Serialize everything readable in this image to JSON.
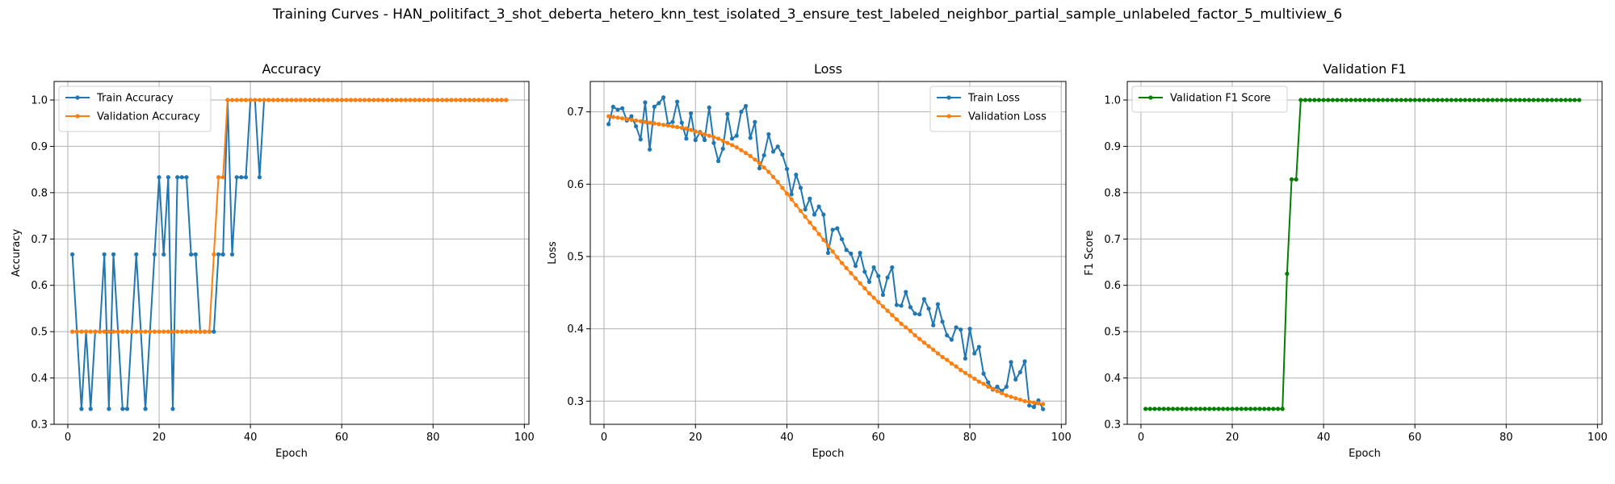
{
  "figure": {
    "title": "Training Curves - HAN_politifact_3_shot_deberta_hetero_knn_test_isolated_3_ensure_test_labeled_neighbor_partial_sample_unlabeled_factor_5_multiview_6"
  },
  "colors": {
    "train": "#1f77b4",
    "validation": "#ff7f0e",
    "f1": "#008000",
    "grid": "#b0b0b0"
  },
  "chart_data": [
    {
      "type": "line",
      "title": "Accuracy",
      "xlabel": "Epoch",
      "ylabel": "Accuracy",
      "xlim": [
        -3,
        101
      ],
      "ylim": [
        0.3,
        1.04
      ],
      "xticks": [
        0,
        20,
        40,
        60,
        80,
        100
      ],
      "yticks": [
        0.3,
        0.4,
        0.5,
        0.6,
        0.7,
        0.8,
        0.9,
        1.0
      ],
      "ytick_labels": [
        "0.3",
        "0.4",
        "0.5",
        "0.6",
        "0.7",
        "0.8",
        "0.9",
        "1.0"
      ],
      "grid": true,
      "legend_position": "top-left",
      "x_start": 1,
      "series": [
        {
          "name": "Train Accuracy",
          "color": "#1f77b4",
          "values": [
            0.6667,
            0.5,
            0.3333,
            0.5,
            0.3333,
            0.5,
            0.5,
            0.6667,
            0.3333,
            0.6667,
            0.5,
            0.3333,
            0.3333,
            0.5,
            0.6667,
            0.5,
            0.3333,
            0.5,
            0.6667,
            0.8333,
            0.6667,
            0.8333,
            0.3333,
            0.8333,
            0.8333,
            0.8333,
            0.6667,
            0.6667,
            0.5,
            0.5,
            0.5,
            0.5,
            0.6667,
            0.6667,
            1.0,
            0.6667,
            0.8333,
            0.8333,
            0.8333,
            1.0,
            1.0,
            0.8333,
            1.0,
            1.0,
            1.0,
            1.0,
            1.0,
            1.0,
            1.0,
            1.0,
            1.0,
            1.0,
            1.0,
            1.0,
            1.0,
            1.0,
            1.0,
            1.0,
            1.0,
            1.0,
            1.0,
            1.0,
            1.0,
            1.0,
            1.0,
            1.0,
            1.0,
            1.0,
            1.0,
            1.0,
            1.0,
            1.0,
            1.0,
            1.0,
            1.0,
            1.0,
            1.0,
            1.0,
            1.0,
            1.0,
            1.0,
            1.0,
            1.0,
            1.0,
            1.0,
            1.0,
            1.0,
            1.0,
            1.0,
            1.0,
            1.0,
            1.0,
            1.0,
            1.0,
            1.0,
            1.0
          ]
        },
        {
          "name": "Validation Accuracy",
          "color": "#ff7f0e",
          "values": [
            0.5,
            0.5,
            0.5,
            0.5,
            0.5,
            0.5,
            0.5,
            0.5,
            0.5,
            0.5,
            0.5,
            0.5,
            0.5,
            0.5,
            0.5,
            0.5,
            0.5,
            0.5,
            0.5,
            0.5,
            0.5,
            0.5,
            0.5,
            0.5,
            0.5,
            0.5,
            0.5,
            0.5,
            0.5,
            0.5,
            0.5,
            0.6667,
            0.8333,
            0.8333,
            1.0,
            1.0,
            1.0,
            1.0,
            1.0,
            1.0,
            1.0,
            1.0,
            1.0,
            1.0,
            1.0,
            1.0,
            1.0,
            1.0,
            1.0,
            1.0,
            1.0,
            1.0,
            1.0,
            1.0,
            1.0,
            1.0,
            1.0,
            1.0,
            1.0,
            1.0,
            1.0,
            1.0,
            1.0,
            1.0,
            1.0,
            1.0,
            1.0,
            1.0,
            1.0,
            1.0,
            1.0,
            1.0,
            1.0,
            1.0,
            1.0,
            1.0,
            1.0,
            1.0,
            1.0,
            1.0,
            1.0,
            1.0,
            1.0,
            1.0,
            1.0,
            1.0,
            1.0,
            1.0,
            1.0,
            1.0,
            1.0,
            1.0,
            1.0,
            1.0,
            1.0,
            1.0
          ]
        }
      ]
    },
    {
      "type": "line",
      "title": "Loss",
      "xlabel": "Epoch",
      "ylabel": "Loss",
      "xlim": [
        -3,
        101
      ],
      "ylim": [
        0.268,
        0.742
      ],
      "xticks": [
        0,
        20,
        40,
        60,
        80,
        100
      ],
      "yticks": [
        0.3,
        0.4,
        0.5,
        0.6,
        0.7
      ],
      "ytick_labels": [
        "0.3",
        "0.4",
        "0.5",
        "0.6",
        "0.7"
      ],
      "grid": true,
      "legend_position": "top-right",
      "x_start": 1,
      "series": [
        {
          "name": "Train Loss",
          "color": "#1f77b4",
          "values": [
            0.683,
            0.707,
            0.703,
            0.705,
            0.688,
            0.694,
            0.68,
            0.662,
            0.713,
            0.648,
            0.707,
            0.712,
            0.72,
            0.683,
            0.686,
            0.714,
            0.685,
            0.663,
            0.698,
            0.661,
            0.672,
            0.661,
            0.706,
            0.657,
            0.632,
            0.649,
            0.697,
            0.663,
            0.667,
            0.7,
            0.708,
            0.664,
            0.686,
            0.622,
            0.64,
            0.669,
            0.645,
            0.652,
            0.641,
            0.621,
            0.586,
            0.613,
            0.595,
            0.565,
            0.58,
            0.558,
            0.569,
            0.558,
            0.505,
            0.537,
            0.539,
            0.524,
            0.509,
            0.504,
            0.487,
            0.505,
            0.479,
            0.465,
            0.485,
            0.473,
            0.447,
            0.471,
            0.485,
            0.433,
            0.432,
            0.451,
            0.43,
            0.421,
            0.42,
            0.441,
            0.428,
            0.405,
            0.434,
            0.41,
            0.391,
            0.385,
            0.402,
            0.399,
            0.359,
            0.4,
            0.366,
            0.375,
            0.338,
            0.326,
            0.316,
            0.32,
            0.314,
            0.32,
            0.354,
            0.33,
            0.34,
            0.355,
            0.294,
            0.292,
            0.301,
            0.289
          ]
        },
        {
          "name": "Validation Loss",
          "color": "#ff7f0e",
          "values": [
            0.694,
            0.693,
            0.692,
            0.691,
            0.69,
            0.689,
            0.688,
            0.687,
            0.686,
            0.685,
            0.684,
            0.683,
            0.682,
            0.681,
            0.68,
            0.679,
            0.678,
            0.677,
            0.675,
            0.673,
            0.671,
            0.669,
            0.667,
            0.665,
            0.663,
            0.66,
            0.657,
            0.654,
            0.651,
            0.647,
            0.643,
            0.639,
            0.634,
            0.629,
            0.623,
            0.617,
            0.61,
            0.603,
            0.595,
            0.587,
            0.579,
            0.571,
            0.563,
            0.555,
            0.547,
            0.539,
            0.531,
            0.523,
            0.515,
            0.507,
            0.499,
            0.491,
            0.484,
            0.477,
            0.47,
            0.463,
            0.456,
            0.449,
            0.443,
            0.437,
            0.431,
            0.425,
            0.419,
            0.413,
            0.407,
            0.402,
            0.397,
            0.391,
            0.386,
            0.381,
            0.376,
            0.371,
            0.366,
            0.361,
            0.357,
            0.352,
            0.348,
            0.343,
            0.339,
            0.335,
            0.331,
            0.327,
            0.324,
            0.32,
            0.317,
            0.314,
            0.311,
            0.308,
            0.306,
            0.304,
            0.302,
            0.3,
            0.299,
            0.298,
            0.297,
            0.296
          ]
        }
      ]
    },
    {
      "type": "line",
      "title": "Validation F1",
      "xlabel": "Epoch",
      "ylabel": "F1 Score",
      "xlim": [
        -3,
        101
      ],
      "ylim": [
        0.3,
        1.04
      ],
      "xticks": [
        0,
        20,
        40,
        60,
        80,
        100
      ],
      "yticks": [
        0.3,
        0.4,
        0.5,
        0.6,
        0.7,
        0.8,
        0.9,
        1.0
      ],
      "ytick_labels": [
        "0.3",
        "0.4",
        "0.5",
        "0.6",
        "0.7",
        "0.8",
        "0.9",
        "1.0"
      ],
      "grid": true,
      "legend_position": "top-left",
      "x_start": 1,
      "series": [
        {
          "name": "Validation F1 Score",
          "color": "#008000",
          "values": [
            0.3333,
            0.3333,
            0.3333,
            0.3333,
            0.3333,
            0.3333,
            0.3333,
            0.3333,
            0.3333,
            0.3333,
            0.3333,
            0.3333,
            0.3333,
            0.3333,
            0.3333,
            0.3333,
            0.3333,
            0.3333,
            0.3333,
            0.3333,
            0.3333,
            0.3333,
            0.3333,
            0.3333,
            0.3333,
            0.3333,
            0.3333,
            0.3333,
            0.3333,
            0.3333,
            0.3333,
            0.625,
            0.8286,
            0.8286,
            1.0,
            1.0,
            1.0,
            1.0,
            1.0,
            1.0,
            1.0,
            1.0,
            1.0,
            1.0,
            1.0,
            1.0,
            1.0,
            1.0,
            1.0,
            1.0,
            1.0,
            1.0,
            1.0,
            1.0,
            1.0,
            1.0,
            1.0,
            1.0,
            1.0,
            1.0,
            1.0,
            1.0,
            1.0,
            1.0,
            1.0,
            1.0,
            1.0,
            1.0,
            1.0,
            1.0,
            1.0,
            1.0,
            1.0,
            1.0,
            1.0,
            1.0,
            1.0,
            1.0,
            1.0,
            1.0,
            1.0,
            1.0,
            1.0,
            1.0,
            1.0,
            1.0,
            1.0,
            1.0,
            1.0,
            1.0,
            1.0,
            1.0,
            1.0,
            1.0,
            1.0,
            1.0
          ]
        }
      ]
    }
  ]
}
